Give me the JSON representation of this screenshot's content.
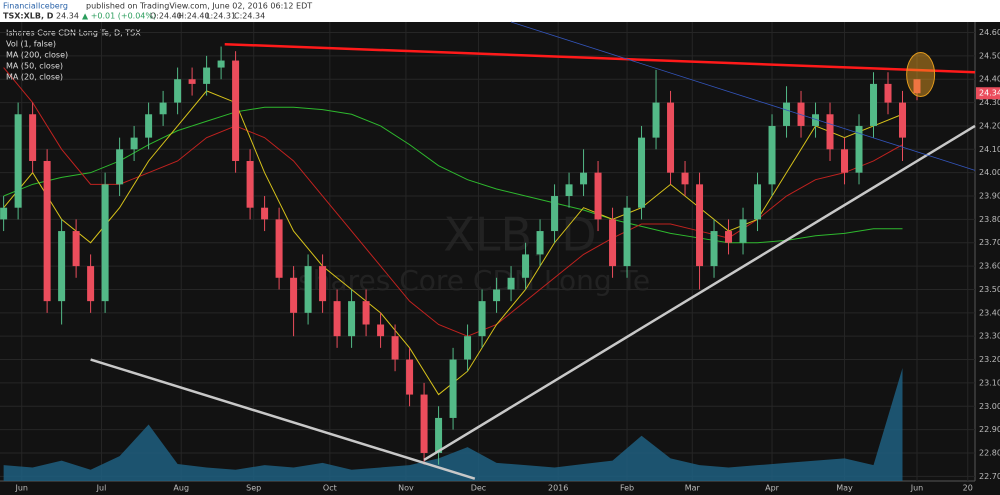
{
  "header": {
    "author": "FinancialIceberg",
    "published": "published on TradingView.com, June 02, 2016 06:12 EDT",
    "symbol": "TSX:XLB, D",
    "last": "24.34",
    "change": "▲ +0.01 (+0.04%)",
    "ohlc": [
      "O:24.40",
      "H:24.40",
      "L:24.31",
      "C:24.34"
    ]
  },
  "chart_data": {
    "type": "candlestick",
    "title": "Ishares Core CDN Long Te, D, TSX",
    "watermark": "XLB, D",
    "watermark_subtitle": "Ishares Core CDN Long Te",
    "up_color": "#53b987",
    "down_color": "#eb4d5c",
    "xlim": [
      -1,
      268
    ],
    "ylim": [
      22.68,
      24.645
    ],
    "xticks": [
      {
        "value": 5,
        "label": "Jun"
      },
      {
        "value": 27,
        "label": "Jul"
      },
      {
        "value": 49,
        "label": "Aug"
      },
      {
        "value": 69,
        "label": "Sep"
      },
      {
        "value": 90,
        "label": "Oct"
      },
      {
        "value": 111,
        "label": "Nov"
      },
      {
        "value": 131,
        "label": "Dec"
      },
      {
        "value": 153,
        "label": "2016"
      },
      {
        "value": 172,
        "label": "Feb"
      },
      {
        "value": 190,
        "label": "Mar"
      },
      {
        "value": 212,
        "label": "Apr"
      },
      {
        "value": 232,
        "label": "May"
      },
      {
        "value": 252,
        "label": "Jun"
      },
      {
        "value": 266,
        "label": "20"
      }
    ],
    "yticks": [
      {
        "value": 22.7,
        "label": "22.70"
      },
      {
        "value": 22.8,
        "label": "22.80"
      },
      {
        "value": 22.9,
        "label": "22.90"
      },
      {
        "value": 23.0,
        "label": "23.00"
      },
      {
        "value": 23.1,
        "label": "23.10"
      },
      {
        "value": 23.2,
        "label": "23.20"
      },
      {
        "value": 23.3,
        "label": "23.30"
      },
      {
        "value": 23.4,
        "label": "23.40"
      },
      {
        "value": 23.5,
        "label": "23.50"
      },
      {
        "value": 23.6,
        "label": "23.60"
      },
      {
        "value": 23.7,
        "label": "23.70"
      },
      {
        "value": 23.8,
        "label": "23.80"
      },
      {
        "value": 23.9,
        "label": "23.90"
      },
      {
        "value": 24.0,
        "label": "24.00"
      },
      {
        "value": 24.1,
        "label": "24.10"
      },
      {
        "value": 24.2,
        "label": "24.20"
      },
      {
        "value": 24.3,
        "label": "24.30"
      },
      {
        "value": 24.4,
        "label": "24.40"
      },
      {
        "value": 24.5,
        "label": "24.50"
      },
      {
        "value": 24.6,
        "label": "24.60"
      }
    ],
    "grid": true,
    "candles": {
      "x": [
        0,
        4,
        8,
        12,
        16,
        20,
        24,
        28,
        32,
        36,
        40,
        44,
        48,
        52,
        56,
        60,
        64,
        68,
        72,
        76,
        80,
        84,
        88,
        92,
        96,
        100,
        104,
        108,
        112,
        116,
        120,
        124,
        128,
        132,
        136,
        140,
        144,
        148,
        152,
        156,
        160,
        164,
        168,
        172,
        176,
        180,
        184,
        188,
        192,
        196,
        200,
        204,
        208,
        212,
        216,
        220,
        224,
        228,
        232,
        236,
        240,
        244,
        248,
        252
      ],
      "open": [
        23.8,
        23.85,
        24.25,
        24.05,
        23.45,
        23.75,
        23.6,
        23.45,
        23.95,
        24.1,
        24.15,
        24.25,
        24.3,
        24.4,
        24.38,
        24.45,
        24.48,
        24.05,
        23.85,
        23.8,
        23.55,
        23.4,
        23.6,
        23.45,
        23.3,
        23.45,
        23.35,
        23.3,
        23.2,
        23.05,
        22.8,
        22.95,
        23.2,
        23.3,
        23.45,
        23.5,
        23.55,
        23.65,
        23.75,
        23.9,
        23.95,
        24.0,
        23.8,
        23.6,
        23.85,
        24.15,
        24.3,
        24.0,
        23.95,
        23.6,
        23.75,
        23.7,
        23.8,
        23.95,
        24.2,
        24.3,
        24.2,
        24.25,
        24.1,
        24.0,
        24.2,
        24.38,
        24.3,
        24.4
      ],
      "high": [
        23.9,
        24.3,
        24.3,
        24.1,
        23.8,
        23.8,
        23.65,
        24.0,
        24.15,
        24.2,
        24.3,
        24.35,
        24.45,
        24.45,
        24.5,
        24.54,
        24.52,
        24.1,
        23.9,
        23.85,
        23.6,
        23.65,
        23.65,
        23.5,
        23.5,
        23.5,
        23.4,
        23.35,
        23.25,
        23.1,
        23.0,
        23.25,
        23.35,
        23.5,
        23.55,
        23.6,
        23.7,
        23.8,
        23.95,
        24.0,
        24.1,
        24.05,
        23.85,
        23.9,
        24.2,
        24.44,
        24.35,
        24.05,
        24.0,
        23.8,
        23.8,
        23.85,
        24.0,
        24.25,
        24.37,
        24.35,
        24.3,
        24.3,
        24.15,
        24.25,
        24.43,
        24.43,
        24.35,
        24.4
      ],
      "low": [
        23.75,
        23.8,
        24.0,
        23.4,
        23.35,
        23.55,
        23.4,
        23.4,
        23.9,
        24.05,
        24.1,
        24.2,
        24.25,
        24.33,
        24.33,
        24.4,
        24.0,
        23.8,
        23.75,
        23.5,
        23.3,
        23.35,
        23.4,
        23.25,
        23.25,
        23.3,
        23.25,
        23.15,
        23.0,
        22.75,
        22.75,
        22.9,
        23.15,
        23.25,
        23.4,
        23.45,
        23.5,
        23.6,
        23.7,
        23.85,
        23.9,
        23.75,
        23.55,
        23.55,
        23.8,
        24.1,
        23.95,
        23.9,
        23.5,
        23.55,
        23.65,
        23.65,
        23.75,
        23.9,
        24.15,
        24.15,
        24.15,
        24.05,
        23.95,
        23.95,
        24.15,
        24.25,
        24.05,
        24.31
      ],
      "close": [
        23.85,
        24.25,
        24.05,
        23.45,
        23.75,
        23.6,
        23.45,
        23.95,
        24.1,
        24.15,
        24.25,
        24.3,
        24.4,
        24.38,
        24.45,
        24.48,
        24.05,
        23.85,
        23.8,
        23.55,
        23.4,
        23.6,
        23.45,
        23.3,
        23.45,
        23.35,
        23.3,
        23.2,
        23.05,
        22.8,
        22.95,
        23.2,
        23.3,
        23.45,
        23.5,
        23.55,
        23.65,
        23.75,
        23.9,
        23.95,
        24.0,
        23.8,
        23.6,
        23.85,
        24.15,
        24.3,
        24.0,
        23.95,
        23.6,
        23.75,
        23.7,
        23.8,
        23.95,
        24.2,
        24.3,
        24.2,
        24.25,
        24.1,
        24.0,
        24.2,
        24.38,
        24.3,
        24.15,
        24.34
      ]
    },
    "ma_x": [
      0,
      8,
      16,
      24,
      32,
      40,
      48,
      56,
      64,
      72,
      80,
      88,
      96,
      104,
      112,
      120,
      128,
      136,
      144,
      152,
      160,
      168,
      176,
      184,
      192,
      200,
      208,
      216,
      224,
      232,
      240,
      248
    ],
    "series": [
      {
        "name": "Vol (1, false)",
        "color": "#1f5f80",
        "vlim": [
          0,
          100
        ],
        "values": [
          14,
          12,
          18,
          10,
          22,
          50,
          15,
          12,
          10,
          14,
          12,
          16,
          10,
          12,
          14,
          20,
          30,
          16,
          14,
          12,
          15,
          18,
          40,
          20,
          14,
          12,
          14,
          16,
          18,
          20,
          14,
          100
        ]
      },
      {
        "name": "MA (200, close)",
        "color": "#2eb82e",
        "values": [
          23.9,
          23.95,
          23.98,
          24.0,
          24.05,
          24.12,
          24.18,
          24.22,
          24.26,
          24.28,
          24.28,
          24.27,
          24.25,
          24.2,
          24.12,
          24.03,
          23.97,
          23.93,
          23.9,
          23.87,
          23.84,
          23.8,
          23.77,
          23.74,
          23.72,
          23.7,
          23.7,
          23.71,
          23.73,
          23.74,
          23.76,
          23.76
        ]
      },
      {
        "name": "MA (50, close)",
        "color": "#c0221f",
        "values": [
          24.45,
          24.3,
          24.1,
          23.95,
          23.95,
          24.0,
          24.05,
          24.15,
          24.2,
          24.15,
          24.05,
          23.9,
          23.75,
          23.6,
          23.45,
          23.35,
          23.3,
          23.35,
          23.45,
          23.55,
          23.65,
          23.72,
          23.78,
          23.78,
          23.75,
          23.72,
          23.8,
          23.9,
          23.97,
          24.0,
          24.05,
          24.12
        ]
      },
      {
        "name": "MA (20, close)",
        "color": "#d6c21a",
        "values": [
          23.85,
          24.0,
          23.8,
          23.7,
          23.85,
          24.05,
          24.2,
          24.35,
          24.3,
          24.0,
          23.75,
          23.6,
          23.5,
          23.4,
          23.25,
          23.05,
          23.15,
          23.35,
          23.5,
          23.7,
          23.85,
          23.8,
          23.85,
          23.95,
          23.85,
          23.75,
          23.8,
          24.0,
          24.2,
          24.15,
          24.2,
          24.25
        ]
      }
    ],
    "drawings": [
      {
        "color": "#ff1a1a",
        "x": [
          61,
          268
        ],
        "y": [
          24.55,
          24.43
        ]
      },
      {
        "color": "#c8c8c8",
        "x": [
          24,
          130
        ],
        "y": [
          23.2,
          22.69
        ]
      },
      {
        "color": "#c8c8c8",
        "x": [
          116,
          268
        ],
        "y": [
          22.77,
          24.2
        ]
      },
      {
        "color": "#3355bb",
        "x": [
          140,
          268
        ],
        "y": [
          24.645,
          24.01
        ]
      }
    ],
    "highlight": {
      "x": 253,
      "y": 24.42
    }
  }
}
